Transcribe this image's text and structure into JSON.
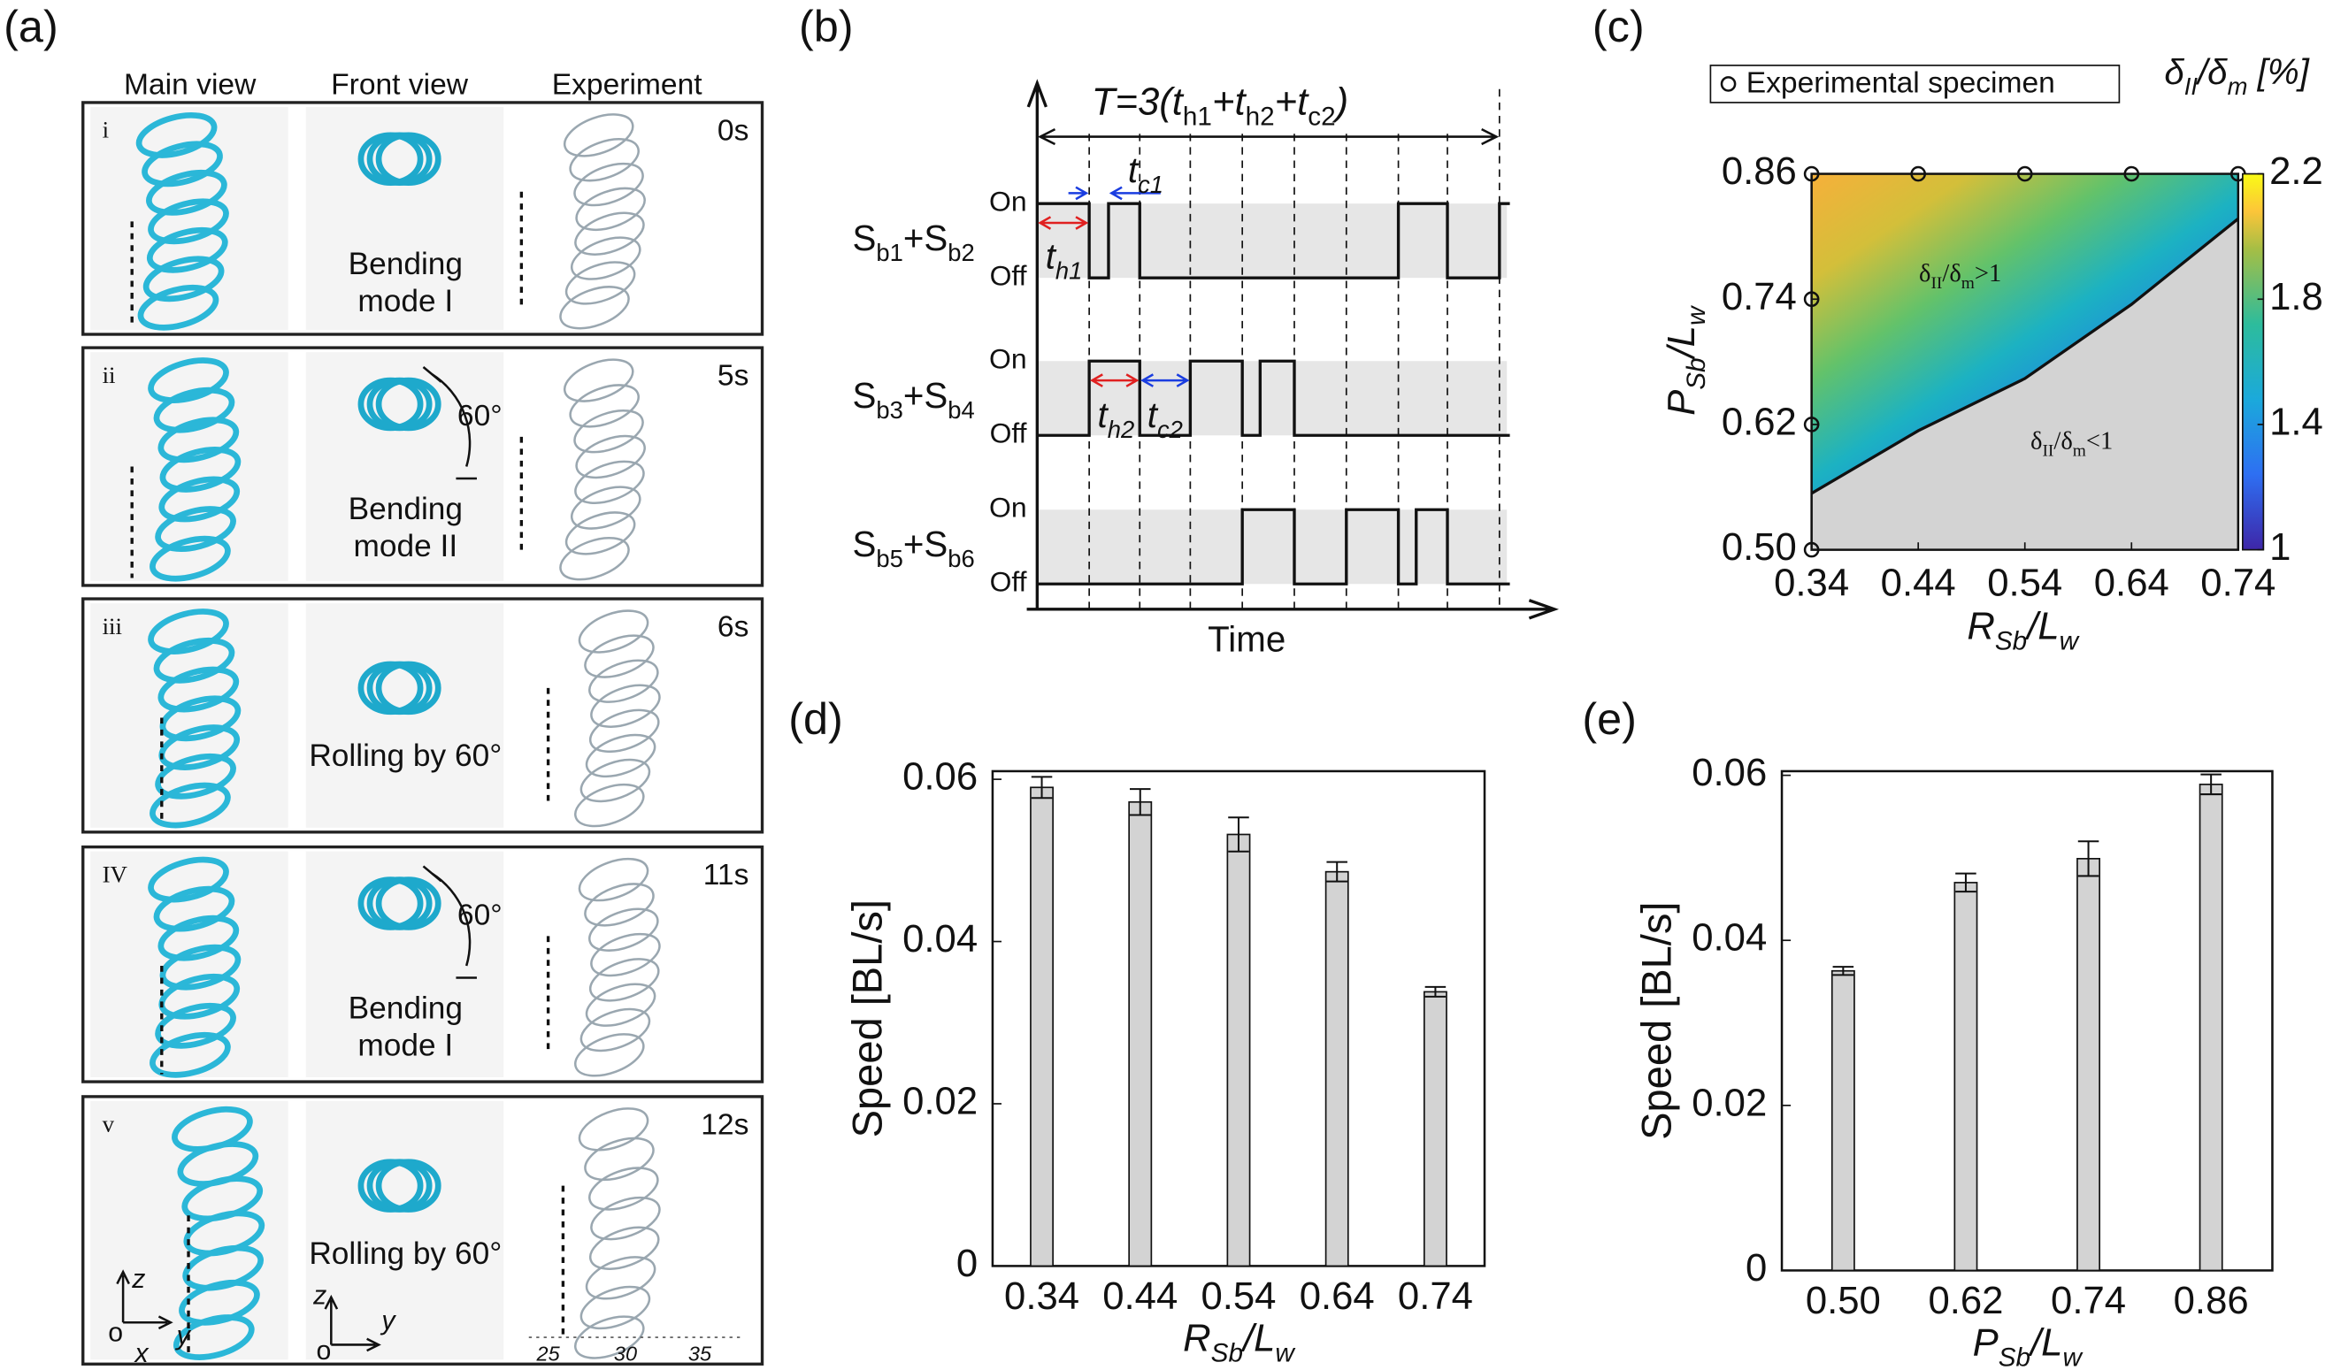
{
  "panel_a": {
    "label": "(a)",
    "columns": [
      "Main view",
      "Front view",
      "Experiment"
    ],
    "rows": [
      {
        "index": "i",
        "time": "0s",
        "caption": [
          "Bending",
          "mode I"
        ]
      },
      {
        "index": "ii",
        "time": "5s",
        "caption": [
          "Bending",
          "mode II"
        ],
        "angle": "60°"
      },
      {
        "index": "iii",
        "time": "6s",
        "caption": [
          "Rolling by 60°"
        ]
      },
      {
        "index": "IV",
        "time": "11s",
        "caption": [
          "Bending",
          "mode I"
        ],
        "angle": "60°"
      },
      {
        "index": "v",
        "time": "12s",
        "caption": [
          "Rolling by 60°"
        ]
      }
    ],
    "axes_main": [
      "z",
      "o",
      "x",
      "y"
    ],
    "axes_front": [
      "z",
      "o",
      "y"
    ],
    "scale": [
      "25",
      "30",
      "35"
    ]
  },
  "panel_b": {
    "label": "(b)",
    "period": [
      "T=3(t",
      "h1",
      "+t",
      "h2",
      "+t",
      "c2",
      ")"
    ],
    "tc1": [
      "t",
      "c1"
    ],
    "th1": [
      "t",
      "h1"
    ],
    "th2": [
      "t",
      "h2"
    ],
    "tc2": [
      "t",
      "c2"
    ],
    "rows": [
      {
        "name": [
          "S",
          "b1",
          "+S",
          "b2"
        ],
        "on": "On",
        "off": "Off"
      },
      {
        "name": [
          "S",
          "b3",
          "+S",
          "b4"
        ],
        "on": "On",
        "off": "Off"
      },
      {
        "name": [
          "S",
          "b5",
          "+S",
          "b6"
        ],
        "on": "On",
        "off": "Off"
      }
    ],
    "xlabel": "Time"
  },
  "chart_data": [
    {
      "type": "heatmap",
      "label": "(c)",
      "legend": "Experimental specimen",
      "colorbar_title": [
        "δ",
        "II",
        "/δ",
        "m",
        " [%]"
      ],
      "clim": [
        1,
        2.2
      ],
      "cticks": [
        1,
        1.4,
        1.8,
        2.2
      ],
      "xlabel": [
        "R",
        "Sb",
        "/L",
        "w"
      ],
      "ylabel": [
        "P",
        "Sb",
        "/L",
        "w"
      ],
      "xlim": [
        0.34,
        0.74
      ],
      "ylim": [
        0.5,
        0.86
      ],
      "xticks": [
        0.34,
        0.44,
        0.54,
        0.64,
        0.74
      ],
      "yticks": [
        {
          "value": 0.5,
          "label": "0.50"
        },
        0.62,
        0.74,
        0.86
      ],
      "specimens": {
        "x": [
          0.34,
          0.44,
          0.54,
          0.64,
          0.74,
          0.34,
          0.34,
          0.34
        ],
        "y": [
          0.86,
          0.86,
          0.86,
          0.86,
          0.86,
          0.74,
          0.62,
          0.5
        ]
      },
      "boundary": {
        "x": [
          0.34,
          0.44,
          0.54,
          0.64,
          0.74
        ],
        "y": [
          0.554,
          0.614,
          0.664,
          0.735,
          0.817
        ]
      },
      "regions": [
        [
          "δ",
          "II",
          "/δ",
          "m",
          ">1"
        ],
        [
          "δ",
          "II",
          "/δ",
          "m",
          "<1"
        ]
      ]
    },
    {
      "type": "bar",
      "label": "(d)",
      "ylabel": "Speed [BL/s]",
      "xlabel": [
        "R",
        "Sb",
        "/L",
        "w"
      ],
      "categories": [
        "0.34",
        "0.44",
        "0.54",
        "0.64",
        "0.74"
      ],
      "values": [
        0.059,
        0.0572,
        0.0532,
        0.0486,
        0.0338
      ],
      "errors": [
        0.0013,
        0.0016,
        0.0021,
        0.0012,
        0.0006
      ],
      "color": "#d3d3d3",
      "ylim": [
        0,
        0.061
      ],
      "yticks": [
        0,
        0.02,
        0.04,
        0.06
      ]
    },
    {
      "type": "bar",
      "label": "(e)",
      "ylabel": "Speed [BL/s]",
      "xlabel": [
        "P",
        "Sb",
        "/L",
        "w"
      ],
      "categories": [
        "0.50",
        "0.62",
        "0.74",
        "0.86"
      ],
      "values": [
        0.0363,
        0.047,
        0.0499,
        0.0589
      ],
      "errors": [
        0.0005,
        0.0011,
        0.0021,
        0.0012
      ],
      "color": "#d3d3d3",
      "ylim": [
        0,
        0.0605
      ],
      "yticks": [
        0,
        0.02,
        0.04,
        0.06
      ]
    }
  ]
}
